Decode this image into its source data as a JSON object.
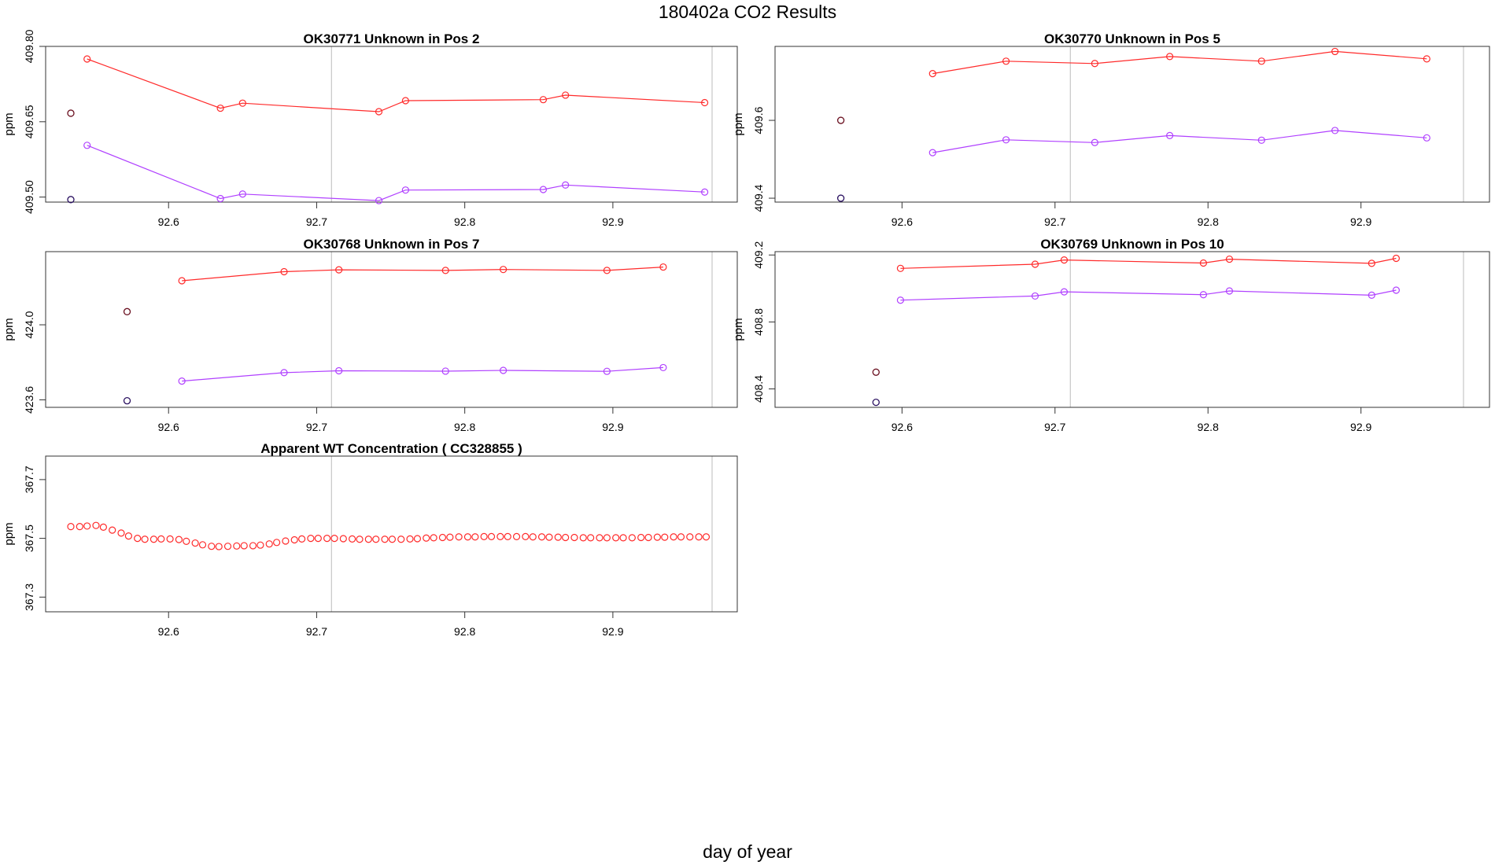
{
  "figure": {
    "title": "180402a  CO2 Results",
    "xlabel": "day of year"
  },
  "colors": {
    "series_a": "#ff2a2a",
    "series_b": "#b040ff",
    "ref": "#000000",
    "vline": "#bbbbbb"
  },
  "chart_data": [
    {
      "type": "scatter",
      "title": "OK30771    Unknown in Pos 2",
      "xlabel": "",
      "ylabel": "ppm",
      "xlim": [
        92.517,
        92.984
      ],
      "ylim": [
        409.49,
        409.8
      ],
      "xticks": [
        "92.6",
        "92.7",
        "92.8",
        "92.9"
      ],
      "xtick_values": [
        92.6,
        92.7,
        92.8,
        92.9
      ],
      "yticks": [
        "409.50",
        "409.65",
        "409.80"
      ],
      "ytick_values": [
        409.5,
        409.65,
        409.8
      ],
      "vlines": [
        92.71,
        92.967
      ],
      "ref_points": [
        {
          "x": 92.534,
          "y": 409.667
        },
        {
          "x": 92.534,
          "y": 409.495
        }
      ],
      "series": [
        {
          "name": "red",
          "x": [
            92.545,
            92.635,
            92.65,
            92.742,
            92.76,
            92.853,
            92.868,
            92.962
          ],
          "y": [
            409.775,
            409.677,
            409.687,
            409.67,
            409.692,
            409.694,
            409.703,
            409.688
          ]
        },
        {
          "name": "purple",
          "x": [
            92.545,
            92.635,
            92.65,
            92.742,
            92.76,
            92.853,
            92.868,
            92.962
          ],
          "y": [
            409.603,
            409.497,
            409.506,
            409.493,
            409.514,
            409.515,
            409.524,
            409.51
          ]
        }
      ]
    },
    {
      "type": "scatter",
      "title": "OK30770    Unknown in Pos 5",
      "xlabel": "",
      "ylabel": "ppm",
      "xlim": [
        92.517,
        92.984
      ],
      "ylim": [
        409.39,
        409.79
      ],
      "xticks": [
        "92.6",
        "92.7",
        "92.8",
        "92.9"
      ],
      "xtick_values": [
        92.6,
        92.7,
        92.8,
        92.9
      ],
      "yticks": [
        "409.4",
        "409.6"
      ],
      "ytick_values": [
        409.4,
        409.6
      ],
      "vlines": [
        92.71,
        92.967
      ],
      "ref_points": [
        {
          "x": 92.56,
          "y": 409.6
        },
        {
          "x": 92.56,
          "y": 409.4
        }
      ],
      "series": [
        {
          "name": "red",
          "x": [
            92.62,
            92.668,
            92.726,
            92.775,
            92.835,
            92.883,
            92.943
          ],
          "y": [
            409.72,
            409.752,
            409.746,
            409.764,
            409.752,
            409.777,
            409.758
          ]
        },
        {
          "name": "purple",
          "x": [
            92.62,
            92.668,
            92.726,
            92.775,
            92.835,
            92.883,
            92.943
          ],
          "y": [
            409.517,
            409.55,
            409.543,
            409.561,
            409.549,
            409.574,
            409.555
          ]
        }
      ]
    },
    {
      "type": "scatter",
      "title": "OK30768    Unknown in Pos 7",
      "xlabel": "",
      "ylabel": "ppm",
      "xlim": [
        92.517,
        92.984
      ],
      "ylim": [
        423.56,
        424.39
      ],
      "xticks": [
        "92.6",
        "92.7",
        "92.8",
        "92.9"
      ],
      "xtick_values": [
        92.6,
        92.7,
        92.8,
        92.9
      ],
      "yticks": [
        "423.6",
        "424.0"
      ],
      "ytick_values": [
        423.6,
        424.0
      ],
      "vlines": [
        92.71,
        92.967
      ],
      "ref_points": [
        {
          "x": 92.572,
          "y": 424.07
        },
        {
          "x": 92.572,
          "y": 423.595
        }
      ],
      "series": [
        {
          "name": "red",
          "x": [
            92.609,
            92.678,
            92.715,
            92.787,
            92.826,
            92.896,
            92.934
          ],
          "y": [
            424.235,
            424.283,
            424.293,
            424.29,
            424.295,
            424.29,
            424.308
          ]
        },
        {
          "name": "purple",
          "x": [
            92.609,
            92.678,
            92.715,
            92.787,
            92.826,
            92.896,
            92.934
          ],
          "y": [
            423.7,
            423.745,
            423.755,
            423.753,
            423.757,
            423.752,
            423.772
          ]
        }
      ]
    },
    {
      "type": "scatter",
      "title": "OK30769    Unknown in Pos 10",
      "xlabel": "",
      "ylabel": "ppm",
      "xlim": [
        92.517,
        92.984
      ],
      "ylim": [
        408.29,
        409.22
      ],
      "xticks": [
        "92.6",
        "92.7",
        "92.8",
        "92.9"
      ],
      "xtick_values": [
        92.6,
        92.7,
        92.8,
        92.9
      ],
      "yticks": [
        "408.4",
        "408.8",
        "409.2"
      ],
      "ytick_values": [
        408.4,
        408.8,
        409.2
      ],
      "vlines": [
        92.71,
        92.967
      ],
      "ref_points": [
        {
          "x": 92.583,
          "y": 408.5
        },
        {
          "x": 92.583,
          "y": 408.32
        }
      ],
      "series": [
        {
          "name": "red",
          "x": [
            92.599,
            92.687,
            92.706,
            92.797,
            92.814,
            92.907,
            92.923
          ],
          "y": [
            409.12,
            409.145,
            409.17,
            409.152,
            409.175,
            409.15,
            409.18
          ]
        },
        {
          "name": "purple",
          "x": [
            92.599,
            92.687,
            92.706,
            92.797,
            92.814,
            92.907,
            92.923
          ],
          "y": [
            408.93,
            408.955,
            408.98,
            408.963,
            408.985,
            408.96,
            408.99
          ]
        }
      ]
    },
    {
      "type": "scatter",
      "title": "Apparent WT Concentration ( CC328855 )",
      "xlabel": "",
      "ylabel": "ppm",
      "xlim": [
        92.517,
        92.984
      ],
      "ylim": [
        367.25,
        367.78
      ],
      "xticks": [
        "92.6",
        "92.7",
        "92.8",
        "92.9"
      ],
      "xtick_values": [
        92.6,
        92.7,
        92.8,
        92.9
      ],
      "yticks": [
        "367.3",
        "367.5",
        "367.7"
      ],
      "ytick_values": [
        367.3,
        367.5,
        367.7
      ],
      "vlines": [
        92.71,
        92.967
      ],
      "ref_points": [],
      "series": [
        {
          "name": "red",
          "lines": false,
          "x": [
            92.534,
            92.54,
            92.545,
            92.551,
            92.556,
            92.562,
            92.568,
            92.573,
            92.579,
            92.584,
            92.59,
            92.595,
            92.601,
            92.607,
            92.612,
            92.618,
            92.623,
            92.629,
            92.634,
            92.64,
            92.646,
            92.651,
            92.657,
            92.662,
            92.668,
            92.673,
            92.679,
            92.685,
            92.69,
            92.696,
            92.701,
            92.707,
            92.712,
            92.718,
            92.724,
            92.729,
            92.735,
            92.74,
            92.746,
            92.751,
            92.757,
            92.763,
            92.768,
            92.774,
            92.779,
            92.785,
            92.79,
            92.796,
            92.802,
            92.807,
            92.813,
            92.818,
            92.824,
            92.829,
            92.835,
            92.841,
            92.846,
            92.852,
            92.857,
            92.863,
            92.868,
            92.874,
            92.88,
            92.885,
            92.891,
            92.896,
            92.902,
            92.907,
            92.913,
            92.919,
            92.924,
            92.93,
            92.935,
            92.941,
            92.946,
            92.952,
            92.958,
            92.963
          ],
          "y": [
            367.54,
            367.54,
            367.542,
            367.544,
            367.538,
            367.528,
            367.518,
            367.508,
            367.5,
            367.497,
            367.497,
            367.498,
            367.498,
            367.496,
            367.49,
            367.484,
            367.478,
            367.473,
            367.472,
            367.473,
            367.474,
            367.475,
            367.475,
            367.477,
            367.481,
            367.486,
            367.491,
            367.495,
            367.498,
            367.5,
            367.5,
            367.5,
            367.5,
            367.499,
            367.498,
            367.497,
            367.497,
            367.497,
            367.497,
            367.497,
            367.497,
            367.498,
            367.499,
            367.501,
            367.502,
            367.503,
            367.504,
            367.505,
            367.505,
            367.505,
            367.506,
            367.506,
            367.506,
            367.506,
            367.506,
            367.506,
            367.505,
            367.505,
            367.504,
            367.504,
            367.503,
            367.503,
            367.502,
            367.502,
            367.502,
            367.502,
            367.502,
            367.502,
            367.502,
            367.503,
            367.503,
            367.504,
            367.504,
            367.505,
            367.505,
            367.505,
            367.505,
            367.505
          ]
        }
      ]
    }
  ]
}
